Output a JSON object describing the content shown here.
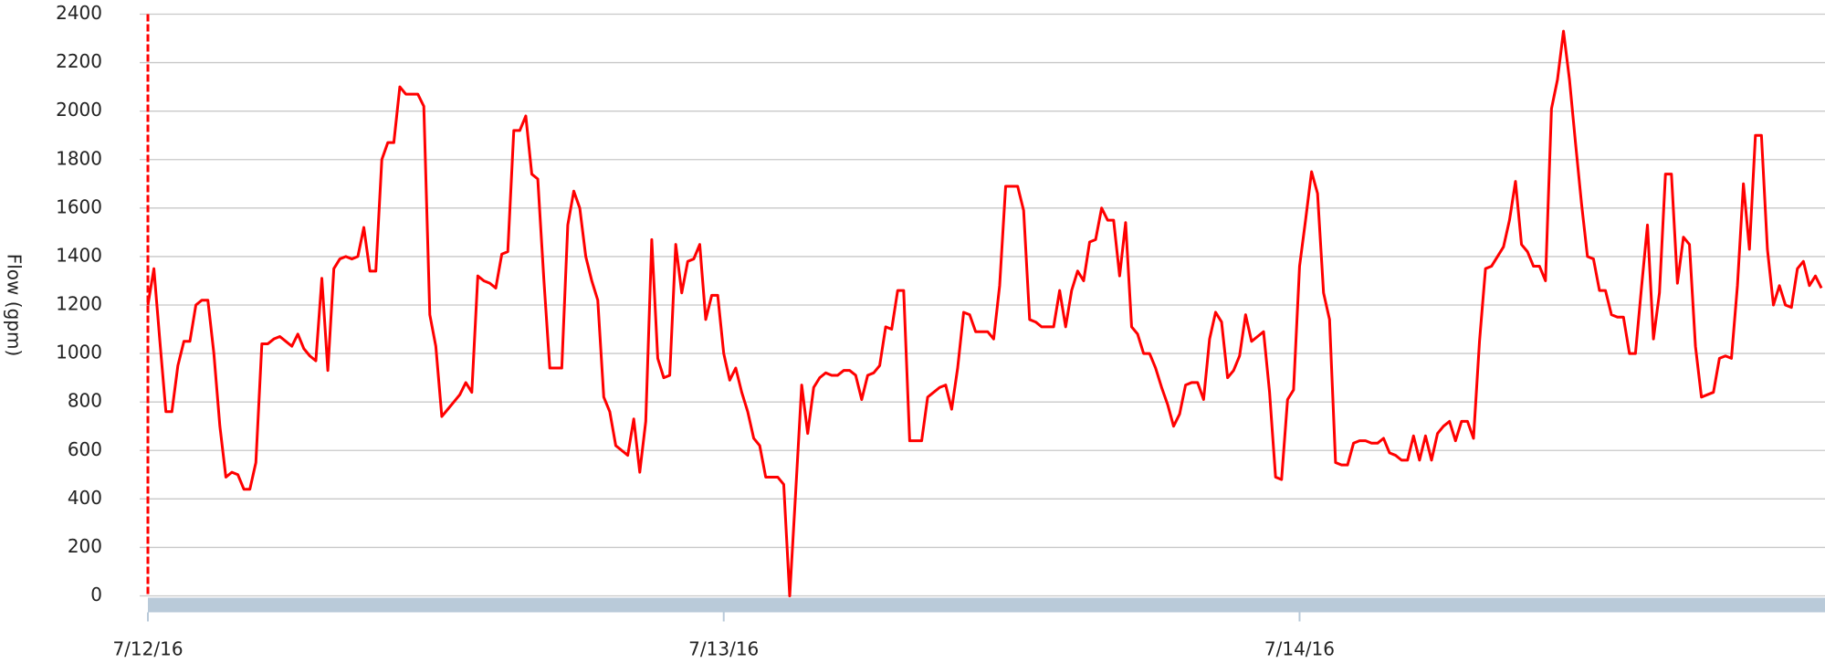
{
  "chart_data": {
    "type": "line",
    "ylabel": "Flow (gpm)",
    "xticks": [
      {
        "value": 0,
        "label": "7/12/16"
      },
      {
        "value": 24,
        "label": "7/13/16"
      },
      {
        "value": 48,
        "label": "7/14/16"
      }
    ],
    "xlim": [
      0,
      69.9
    ],
    "ylim": [
      0,
      2400
    ],
    "yticks": [
      0,
      200,
      400,
      600,
      800,
      1000,
      1200,
      1400,
      1600,
      1800,
      2000,
      2200,
      2400
    ],
    "grid": true,
    "x": [
      0,
      0.25,
      0.5,
      0.75,
      1,
      1.25,
      1.5,
      1.75,
      2,
      2.25,
      2.5,
      2.75,
      3,
      3.25,
      3.5,
      3.75,
      4,
      4.25,
      4.5,
      4.75,
      5,
      5.25,
      5.5,
      5.75,
      6,
      6.25,
      6.5,
      6.75,
      7,
      7.25,
      7.5,
      7.75,
      8,
      8.25,
      8.5,
      8.75,
      9,
      9.25,
      9.5,
      9.75,
      10,
      10.25,
      10.5,
      10.75,
      11,
      11.25,
      11.5,
      11.75,
      12,
      12.25,
      12.5,
      12.75,
      13,
      13.25,
      13.5,
      13.75,
      14,
      14.25,
      14.5,
      14.75,
      15,
      15.25,
      15.5,
      15.75,
      16,
      16.25,
      16.5,
      16.75,
      17,
      17.25,
      17.5,
      17.75,
      18,
      18.25,
      18.5,
      18.75,
      19,
      19.25,
      19.5,
      19.75,
      20,
      20.25,
      20.5,
      20.75,
      21,
      21.25,
      21.5,
      21.75,
      22,
      22.25,
      22.5,
      22.75,
      23,
      23.25,
      23.5,
      23.75,
      24,
      24.25,
      24.5,
      24.75,
      25,
      25.25,
      25.5,
      25.75,
      26,
      26.25,
      26.5,
      26.75,
      27,
      27.25,
      27.5,
      27.75,
      28,
      28.25,
      28.5,
      28.75,
      29,
      29.25,
      29.5,
      29.75,
      30,
      30.25,
      30.5,
      30.75,
      31,
      31.25,
      31.5,
      31.75,
      32,
      32.25,
      32.5,
      32.75,
      33,
      33.25,
      33.5,
      33.75,
      34,
      34.25,
      34.5,
      34.75,
      35,
      35.25,
      35.5,
      35.75,
      36,
      36.25,
      36.5,
      36.75,
      37,
      37.25,
      37.5,
      37.75,
      38,
      38.25,
      38.5,
      38.75,
      39,
      39.25,
      39.5,
      39.75,
      40,
      40.25,
      40.5,
      40.75,
      41,
      41.25,
      41.5,
      41.75,
      42,
      42.25,
      42.5,
      42.75,
      43,
      43.25,
      43.5,
      43.75,
      44,
      44.25,
      44.5,
      44.75,
      45,
      45.25,
      45.5,
      45.75,
      46,
      46.25,
      46.5,
      46.75,
      47,
      47.25,
      47.5,
      47.75,
      48,
      48.25,
      48.5,
      48.75,
      49,
      49.25,
      49.5,
      49.75,
      50,
      50.25,
      50.5,
      50.75,
      51,
      51.25,
      51.5,
      51.75,
      52,
      52.25,
      52.5,
      52.75,
      53,
      53.25,
      53.5,
      53.75,
      54,
      54.25,
      54.5,
      54.75,
      55,
      55.25,
      55.5,
      55.75,
      56,
      56.25,
      56.5,
      56.75,
      57,
      57.25,
      57.5,
      57.75,
      58,
      58.25,
      58.5,
      58.75,
      59,
      59.25,
      59.5,
      59.75,
      60,
      60.25,
      60.5,
      60.75,
      61,
      61.25,
      61.5,
      61.75,
      62,
      62.25,
      62.5,
      62.75,
      63,
      63.25,
      63.5,
      63.75,
      64,
      64.25,
      64.5,
      64.75,
      65,
      65.25,
      65.5,
      65.75,
      66,
      66.25,
      66.5,
      66.75,
      67,
      67.25,
      67.5,
      67.75,
      68,
      68.25,
      68.5,
      68.75,
      69,
      69.25,
      69.5,
      69.75
    ],
    "series": [
      {
        "name": "Flow",
        "color": "#ff0000",
        "values": [
          1200,
          1350,
          1050,
          760,
          760,
          950,
          1050,
          1050,
          1200,
          1220,
          1220,
          1000,
          700,
          490,
          510,
          500,
          440,
          440,
          550,
          1040,
          1040,
          1060,
          1070,
          1050,
          1030,
          1080,
          1020,
          990,
          970,
          1310,
          930,
          1350,
          1390,
          1400,
          1390,
          1400,
          1520,
          1340,
          1340,
          1800,
          1870,
          1870,
          2100,
          2070,
          2070,
          2070,
          2020,
          1160,
          1030,
          740,
          770,
          800,
          830,
          880,
          840,
          1320,
          1300,
          1290,
          1270,
          1410,
          1420,
          1920,
          1920,
          1980,
          1740,
          1720,
          1310,
          940,
          940,
          940,
          1530,
          1670,
          1600,
          1400,
          1300,
          1220,
          820,
          760,
          620,
          600,
          580,
          730,
          510,
          720,
          1470,
          980,
          900,
          910,
          1450,
          1250,
          1380,
          1390,
          1450,
          1140,
          1240,
          1240,
          1000,
          890,
          940,
          840,
          760,
          650,
          620,
          490,
          490,
          490,
          460,
          0,
          430,
          870,
          670,
          860,
          900,
          920,
          910,
          910,
          930,
          930,
          910,
          810,
          910,
          920,
          950,
          1110,
          1100,
          1260,
          1260,
          640,
          640,
          640,
          820,
          840,
          860,
          870,
          770,
          940,
          1170,
          1160,
          1090,
          1090,
          1090,
          1060,
          1280,
          1690,
          1690,
          1690,
          1590,
          1140,
          1130,
          1110,
          1110,
          1110,
          1260,
          1110,
          1260,
          1340,
          1300,
          1460,
          1470,
          1600,
          1550,
          1550,
          1320,
          1540,
          1110,
          1080,
          1000,
          1000,
          940,
          860,
          790,
          700,
          750,
          870,
          880,
          880,
          810,
          1060,
          1170,
          1130,
          900,
          930,
          990,
          1160,
          1050,
          1070,
          1090,
          840,
          490,
          480,
          810,
          850,
          1360,
          1550,
          1750,
          1660,
          1250,
          1140,
          550,
          540,
          540,
          630,
          640,
          640,
          630,
          630,
          650,
          590,
          580,
          560,
          560,
          660,
          560,
          660,
          560,
          670,
          700,
          720,
          640,
          720,
          720,
          650,
          1050,
          1350,
          1360,
          1400,
          1440,
          1550,
          1710,
          1450,
          1420,
          1360,
          1360,
          1300,
          2010,
          2130,
          2330,
          2130,
          1870,
          1620,
          1400,
          1390,
          1260,
          1260,
          1160,
          1150,
          1150,
          1000,
          1000,
          1270,
          1530,
          1060,
          1250,
          1740,
          1740,
          1290,
          1480,
          1450,
          1030,
          820,
          830,
          840,
          980,
          990,
          980,
          1280,
          1700,
          1430,
          1900,
          1900,
          1430,
          1200,
          1280,
          1200,
          1190,
          1350,
          1380,
          1280,
          1320,
          1270
        ]
      }
    ]
  }
}
